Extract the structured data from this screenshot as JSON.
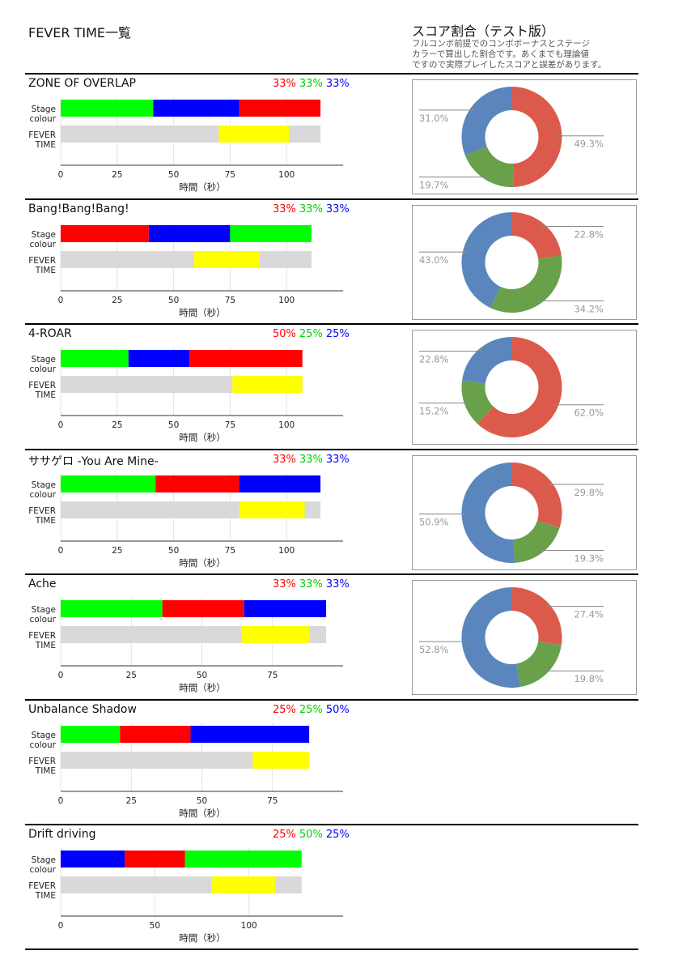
{
  "header": {
    "left_title": "FEVER TIME一覧",
    "right_title": "スコア割合（テスト版）",
    "note_lines": [
      "フルコンボ前提でのコンボボーナスとステージ",
      "カラーで算出した割合です。あくまでも理論値",
      "ですので実際プレイしたスコアと誤差があります。"
    ]
  },
  "axis_labels": {
    "stage_row": [
      "Stage",
      "colour"
    ],
    "fever_row": [
      "FEVER",
      "TIME"
    ],
    "xlabel": "時間（秒）"
  },
  "colors": {
    "red": "#ff0000",
    "green": "#00ff00",
    "blue": "#0000ff",
    "yellow": "#ffff00",
    "track": "#d9d9d9",
    "pie_red": "#dc5a4b",
    "pie_green": "#68a14a",
    "pie_blue": "#5a86bd"
  },
  "chart_data": [
    {
      "type": "bar",
      "title": "ZONE OF OVERLAP",
      "ratio": [
        "33%",
        "33%",
        "33%"
      ],
      "xlim": [
        0,
        125
      ],
      "ticks": [
        0,
        25,
        50,
        75,
        100
      ],
      "stage": [
        {
          "color": "green",
          "start": 0,
          "end": 41
        },
        {
          "color": "blue",
          "start": 41,
          "end": 79
        },
        {
          "color": "red",
          "start": 79,
          "end": 115
        }
      ],
      "fever": {
        "start": 70,
        "end": 101
      },
      "total": 115,
      "pie": {
        "type": "pie",
        "values": {
          "red": 49.3,
          "green": 19.7,
          "blue": 31.0
        },
        "labels": {
          "red": "49.3%",
          "green": "19.7%",
          "blue": "31.0%"
        }
      }
    },
    {
      "type": "bar",
      "title": "Bang!Bang!Bang!",
      "ratio": [
        "33%",
        "33%",
        "33%"
      ],
      "xlim": [
        0,
        125
      ],
      "ticks": [
        0,
        25,
        50,
        75,
        100
      ],
      "stage": [
        {
          "color": "red",
          "start": 0,
          "end": 39
        },
        {
          "color": "blue",
          "start": 39,
          "end": 75
        },
        {
          "color": "green",
          "start": 75,
          "end": 111
        }
      ],
      "fever": {
        "start": 59,
        "end": 88
      },
      "total": 111,
      "pie": {
        "type": "pie",
        "values": {
          "red": 22.8,
          "green": 34.2,
          "blue": 43.0
        },
        "labels": {
          "red": "22.8%",
          "green": "34.2%",
          "blue": "43.0%"
        }
      }
    },
    {
      "type": "bar",
      "title": "4-ROAR",
      "ratio": [
        "50%",
        "25%",
        "25%"
      ],
      "xlim": [
        0,
        125
      ],
      "ticks": [
        0,
        25,
        50,
        75,
        100
      ],
      "stage": [
        {
          "color": "green",
          "start": 0,
          "end": 30
        },
        {
          "color": "blue",
          "start": 30,
          "end": 57
        },
        {
          "color": "red",
          "start": 57,
          "end": 107
        }
      ],
      "fever": {
        "start": 76,
        "end": 107
      },
      "total": 107,
      "pie": {
        "type": "pie",
        "values": {
          "red": 62.0,
          "green": 15.2,
          "blue": 22.8
        },
        "labels": {
          "red": "62.0%",
          "green": "15.2%",
          "blue": "22.8%"
        }
      }
    },
    {
      "type": "bar",
      "title": "ササゲロ -You Are Mine-",
      "ratio": [
        "33%",
        "33%",
        "33%"
      ],
      "xlim": [
        0,
        125
      ],
      "ticks": [
        0,
        25,
        50,
        75,
        100
      ],
      "stage": [
        {
          "color": "green",
          "start": 0,
          "end": 42
        },
        {
          "color": "red",
          "start": 42,
          "end": 79
        },
        {
          "color": "blue",
          "start": 79,
          "end": 115
        }
      ],
      "fever": {
        "start": 79,
        "end": 108
      },
      "total": 115,
      "pie": {
        "type": "pie",
        "values": {
          "red": 29.8,
          "green": 19.3,
          "blue": 50.9
        },
        "labels": {
          "red": "29.8%",
          "green": "19.3%",
          "blue": "50.9%"
        }
      }
    },
    {
      "type": "bar",
      "title": "Ache",
      "ratio": [
        "33%",
        "33%",
        "33%"
      ],
      "xlim": [
        0,
        100
      ],
      "ticks": [
        0,
        25,
        50,
        75
      ],
      "stage": [
        {
          "color": "green",
          "start": 0,
          "end": 36
        },
        {
          "color": "red",
          "start": 36,
          "end": 65
        },
        {
          "color": "blue",
          "start": 65,
          "end": 94
        }
      ],
      "fever": {
        "start": 64,
        "end": 88
      },
      "total": 94,
      "pie": {
        "type": "pie",
        "values": {
          "red": 27.4,
          "green": 19.8,
          "blue": 52.8
        },
        "labels": {
          "red": "27.4%",
          "green": "19.8%",
          "blue": "52.8%"
        }
      }
    },
    {
      "type": "bar",
      "title": "Unbalance Shadow",
      "ratio": [
        "25%",
        "25%",
        "50%"
      ],
      "xlim": [
        0,
        100
      ],
      "ticks": [
        0,
        25,
        50,
        75
      ],
      "stage": [
        {
          "color": "green",
          "start": 0,
          "end": 21
        },
        {
          "color": "red",
          "start": 21,
          "end": 46
        },
        {
          "color": "blue",
          "start": 46,
          "end": 88
        }
      ],
      "fever": {
        "start": 68,
        "end": 88
      },
      "total": 88
    },
    {
      "type": "bar",
      "title": "Drift driving",
      "ratio": [
        "25%",
        "50%",
        "25%"
      ],
      "xlim": [
        0,
        150
      ],
      "ticks": [
        0,
        50,
        100
      ],
      "stage": [
        {
          "color": "blue",
          "start": 0,
          "end": 34
        },
        {
          "color": "red",
          "start": 34,
          "end": 66
        },
        {
          "color": "green",
          "start": 66,
          "end": 128
        }
      ],
      "fever": {
        "start": 80,
        "end": 114
      },
      "total": 128
    }
  ]
}
